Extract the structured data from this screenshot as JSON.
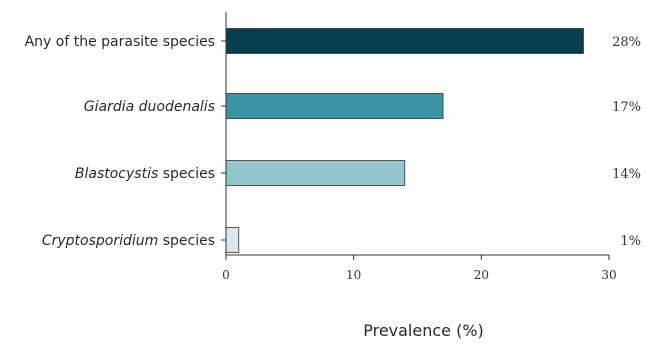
{
  "chart_data": {
    "type": "bar",
    "orientation": "horizontal",
    "categories": [
      {
        "parts": [
          {
            "text": "Any of the parasite species",
            "italic": false
          }
        ]
      },
      {
        "parts": [
          {
            "text": "Giardia duodenalis",
            "italic": true
          }
        ]
      },
      {
        "parts": [
          {
            "text": "Blastocystis",
            "italic": true
          },
          {
            "text": " species",
            "italic": false
          }
        ]
      },
      {
        "parts": [
          {
            "text": "Cryptosporidium",
            "italic": true
          },
          {
            "text": " species",
            "italic": false
          }
        ]
      }
    ],
    "values": [
      28,
      17,
      14,
      1
    ],
    "value_labels": [
      "28%",
      "17%",
      "14%",
      "1%"
    ],
    "colors": [
      "#073f4f",
      "#3a95a3",
      "#93c6cd",
      "#dbe6ee"
    ],
    "xlabel": "Prevalence (%)",
    "ylabel": "",
    "title": "",
    "xlim": [
      0,
      30
    ],
    "xticks": [
      0,
      10,
      20,
      30
    ],
    "grid": false,
    "legend": "none"
  }
}
